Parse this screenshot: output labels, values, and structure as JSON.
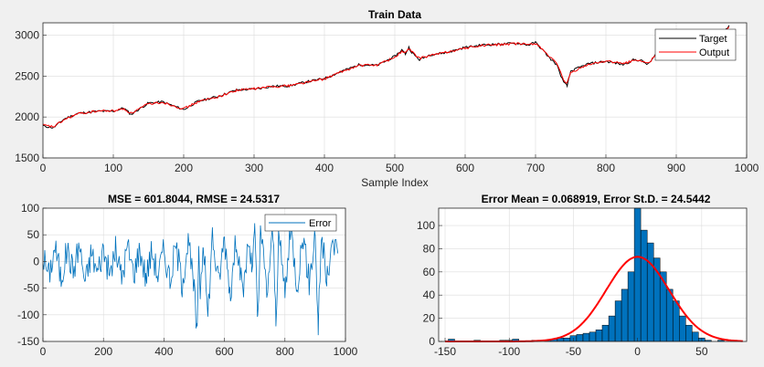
{
  "figure": {
    "background": "#f0f0f0"
  },
  "colors": {
    "target": "#000000",
    "output": "#ff0000",
    "error": "#0072bd",
    "histogram_bar": "#0072bd",
    "histogram_edge": "#000000",
    "normal_fit": "#ff0000",
    "grid": "#dcdcdc",
    "axes": "#262626"
  },
  "chart_data": [
    {
      "id": "train",
      "type": "line",
      "title": "Train Data",
      "xlabel": "Sample Index",
      "ylabel": "",
      "xlim": [
        0,
        1000
      ],
      "ylim": [
        1500,
        3150
      ],
      "xticks": [
        0,
        100,
        200,
        300,
        400,
        500,
        600,
        700,
        800,
        900,
        1000
      ],
      "yticks": [
        1500,
        2000,
        2500,
        3000
      ],
      "grid": true,
      "legend": {
        "placement": "top-right",
        "entries": [
          "Target",
          "Output"
        ]
      },
      "series": [
        {
          "name": "Target",
          "color": "#000000",
          "x": [
            0,
            15,
            30,
            50,
            80,
            100,
            115,
            125,
            150,
            170,
            200,
            220,
            250,
            275,
            300,
            325,
            350,
            375,
            400,
            425,
            450,
            475,
            500,
            510,
            515,
            520,
            525,
            535,
            550,
            575,
            600,
            625,
            650,
            675,
            690,
            700,
            710,
            720,
            730,
            740,
            745,
            750,
            775,
            800,
            825,
            840,
            850,
            860,
            875,
            900,
            925,
            950,
            965,
            975
          ],
          "y": [
            1890,
            1870,
            1975,
            2045,
            2070,
            2070,
            2110,
            2030,
            2170,
            2185,
            2090,
            2190,
            2255,
            2330,
            2340,
            2375,
            2380,
            2430,
            2470,
            2560,
            2640,
            2630,
            2740,
            2820,
            2770,
            2850,
            2780,
            2700,
            2760,
            2790,
            2850,
            2880,
            2890,
            2900,
            2880,
            2910,
            2820,
            2720,
            2640,
            2420,
            2380,
            2560,
            2650,
            2680,
            2640,
            2700,
            2690,
            2640,
            2810,
            2760,
            2750,
            2860,
            2990,
            3120
          ]
        },
        {
          "name": "Output",
          "color": "#ff0000",
          "x": [
            0,
            15,
            30,
            50,
            80,
            100,
            115,
            125,
            150,
            170,
            200,
            220,
            250,
            275,
            300,
            325,
            350,
            375,
            400,
            425,
            450,
            475,
            500,
            510,
            515,
            520,
            525,
            535,
            550,
            575,
            600,
            625,
            650,
            675,
            690,
            700,
            710,
            720,
            730,
            740,
            745,
            750,
            775,
            800,
            825,
            840,
            850,
            860,
            875,
            900,
            925,
            950,
            965,
            975
          ],
          "y": [
            1900,
            1880,
            1965,
            2040,
            2075,
            2075,
            2100,
            2045,
            2160,
            2180,
            2100,
            2185,
            2250,
            2325,
            2345,
            2370,
            2385,
            2425,
            2465,
            2555,
            2630,
            2635,
            2730,
            2800,
            2785,
            2830,
            2790,
            2715,
            2750,
            2795,
            2840,
            2875,
            2885,
            2895,
            2885,
            2900,
            2830,
            2735,
            2650,
            2450,
            2410,
            2540,
            2640,
            2685,
            2650,
            2695,
            2685,
            2650,
            2800,
            2765,
            2755,
            2850,
            2975,
            3100
          ]
        }
      ]
    },
    {
      "id": "error",
      "type": "line",
      "title": "MSE = 601.8044, RMSE = 24.5317",
      "xlabel": "",
      "ylabel": "",
      "xlim": [
        0,
        1000
      ],
      "ylim": [
        -150,
        100
      ],
      "xticks": [
        0,
        200,
        400,
        600,
        800,
        1000
      ],
      "yticks": [
        -150,
        -100,
        -50,
        0,
        50,
        100
      ],
      "grid": true,
      "legend": {
        "placement": "top-right",
        "entries": [
          "Error"
        ]
      },
      "series": [
        {
          "name": "Error",
          "color": "#0072bd",
          "x": [
            0,
            20,
            40,
            60,
            80,
            100,
            120,
            140,
            160,
            180,
            200,
            220,
            240,
            260,
            280,
            300,
            320,
            340,
            360,
            380,
            400,
            420,
            440,
            460,
            480,
            500,
            510,
            515,
            520,
            530,
            545,
            560,
            580,
            600,
            620,
            640,
            660,
            680,
            690,
            700,
            710,
            720,
            740,
            760,
            770,
            780,
            800,
            820,
            840,
            860,
            880,
            900,
            910,
            920,
            940,
            960,
            975
          ],
          "y": [
            10,
            -25,
            28,
            -32,
            22,
            -18,
            32,
            -42,
            18,
            -22,
            25,
            -28,
            22,
            -30,
            28,
            -22,
            25,
            -30,
            20,
            -25,
            22,
            -35,
            30,
            -40,
            38,
            -55,
            -145,
            40,
            -60,
            45,
            -105,
            50,
            -40,
            45,
            -60,
            50,
            -65,
            40,
            -15,
            55,
            -115,
            60,
            -60,
            55,
            -100,
            45,
            -55,
            60,
            -45,
            50,
            -40,
            55,
            -125,
            45,
            -35,
            38,
            15
          ]
        }
      ]
    },
    {
      "id": "histogram",
      "type": "bar",
      "title": "Error Mean = 0.068919, Error St.D. = 24.5442",
      "xlabel": "",
      "ylabel": "",
      "xlim": [
        -155,
        85
      ],
      "ylim": [
        0,
        115
      ],
      "xticks": [
        -150,
        -100,
        -50,
        0,
        50
      ],
      "yticks": [
        0,
        20,
        40,
        60,
        80,
        100
      ],
      "grid": true,
      "bin_width": 5,
      "bins": [
        -145,
        -140,
        -135,
        -130,
        -125,
        -120,
        -115,
        -110,
        -105,
        -100,
        -95,
        -90,
        -85,
        -80,
        -75,
        -70,
        -65,
        -60,
        -55,
        -50,
        -45,
        -40,
        -35,
        -30,
        -25,
        -20,
        -15,
        -10,
        -5,
        0,
        5,
        10,
        15,
        20,
        25,
        30,
        35,
        40,
        45,
        50,
        55,
        60,
        65,
        70,
        75
      ],
      "counts": [
        2,
        0,
        0,
        0,
        1,
        0,
        0,
        0,
        1,
        1,
        2,
        0,
        0,
        1,
        0,
        1,
        2,
        3,
        3,
        5,
        6,
        7,
        8,
        10,
        14,
        22,
        35,
        45,
        60,
        115,
        96,
        85,
        72,
        60,
        45,
        35,
        22,
        14,
        8,
        3,
        1,
        0,
        1,
        0,
        1
      ],
      "fit": {
        "type": "normal",
        "mean": 0.068919,
        "std": 24.5442,
        "peak_count": 73,
        "color": "#ff0000"
      }
    }
  ]
}
